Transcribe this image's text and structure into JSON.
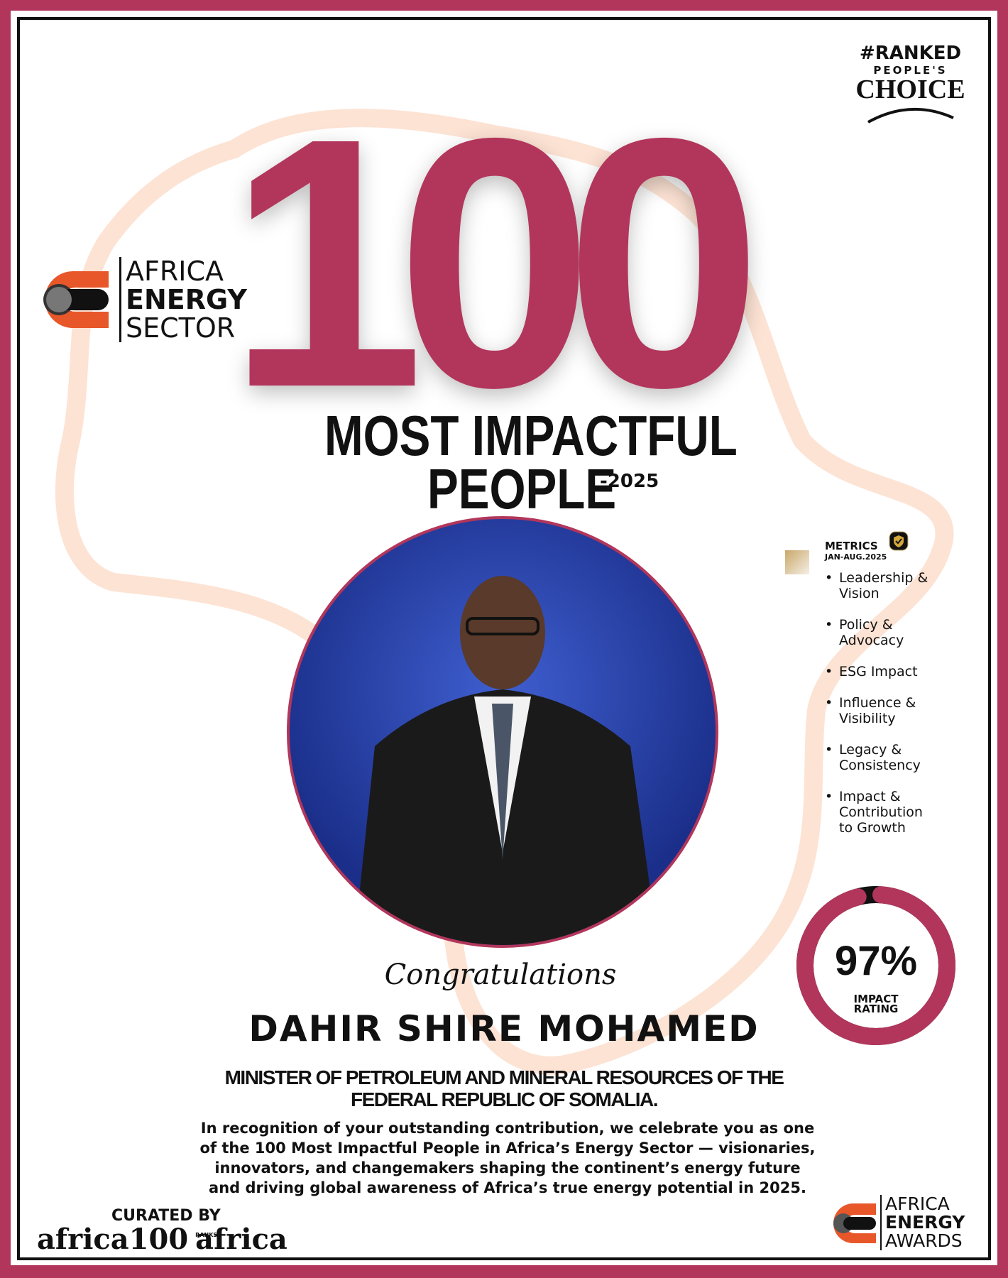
{
  "badge": {
    "hashtag": "#RANKED",
    "line2": "PEOPLE'S",
    "line3": "CHOICE"
  },
  "logo_top": {
    "line1": "AFRICA",
    "line2": "ENERGY",
    "line3": "SECTOR"
  },
  "headline": {
    "number": "100",
    "line1": "MOST IMPACTFUL",
    "line2": "PEOPLE",
    "year": "-2025"
  },
  "metrics": {
    "title": "METRICS",
    "period": "JAN-AUG.2025",
    "items": [
      "Leadership & Vision",
      "Policy & Advocacy",
      "ESG Impact",
      "Influence & Visibility",
      "Legacy & Consistency",
      "Impact & Contribution to Growth"
    ]
  },
  "rating": {
    "value": "97%",
    "percent": 97,
    "label1": "IMPACT",
    "label2": "RATING"
  },
  "honoree": {
    "congrats": "Congratulations",
    "name": "DAHIR SHIRE MOHAMED",
    "title1": "MINISTER OF PETROLEUM AND MINERAL RESOURCES OF THE",
    "title2": "FEDERAL REPUBLIC OF SOMALIA.",
    "citation": "In recognition of your outstanding contribution, we celebrate you as one of the 100 Most Impactful People in Africa’s Energy Sector — visionaries, innovators, and changemakers shaping the continent’s energy future and driving global awareness of Africa’s true energy potential in 2025."
  },
  "curated": {
    "label": "CURATED BY",
    "logo1": "africa100",
    "logo2": "africa",
    "logo2_small": "RANKS"
  },
  "logo_bottom": {
    "line1": "AFRICA",
    "line2": "ENERGY",
    "line3": "AWARDS"
  },
  "colors": {
    "brand": "#b2365b",
    "accent": "#e8572a",
    "map": "#fde3d4"
  }
}
